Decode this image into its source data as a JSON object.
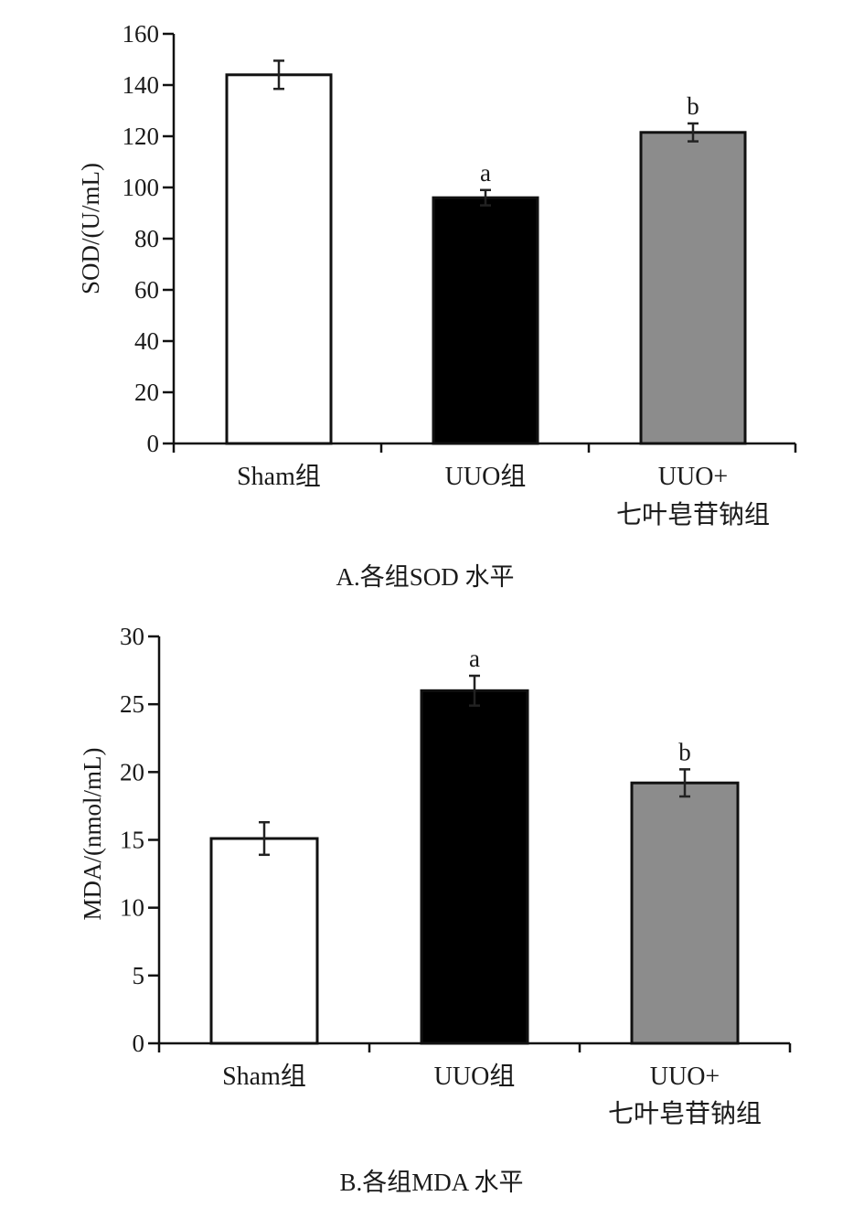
{
  "chart_data": [
    {
      "type": "bar",
      "title": "",
      "caption": "A.各组SOD 水平",
      "xlabel": "",
      "ylabel": "SOD/(U/mL)",
      "ylim": [
        0,
        160
      ],
      "yticks": [
        0,
        20,
        40,
        60,
        80,
        100,
        120,
        140,
        160
      ],
      "categories": [
        [
          "Sham组"
        ],
        [
          "UUO组"
        ],
        [
          "UUO+",
          "七叶皂苷钠组"
        ]
      ],
      "values": [
        144,
        96,
        121.5
      ],
      "errors": [
        5.5,
        3,
        3.5
      ],
      "colors": [
        "#ffffff",
        "#000000",
        "#8c8c8c"
      ],
      "significance": [
        "",
        "a",
        "b"
      ]
    },
    {
      "type": "bar",
      "title": "",
      "caption": "B.各组MDA 水平",
      "xlabel": "",
      "ylabel": "MDA/(nmol/mL)",
      "ylim": [
        0,
        30
      ],
      "yticks": [
        0,
        5,
        10,
        15,
        20,
        25,
        30
      ],
      "categories": [
        [
          "Sham组"
        ],
        [
          "UUO组"
        ],
        [
          "UUO+",
          "七叶皂苷钠组"
        ]
      ],
      "values": [
        15.1,
        26,
        19.2
      ],
      "errors": [
        1.2,
        1.1,
        1.0
      ],
      "colors": [
        "#ffffff",
        "#000000",
        "#8c8c8c"
      ],
      "significance": [
        "",
        "a",
        "b"
      ]
    }
  ]
}
